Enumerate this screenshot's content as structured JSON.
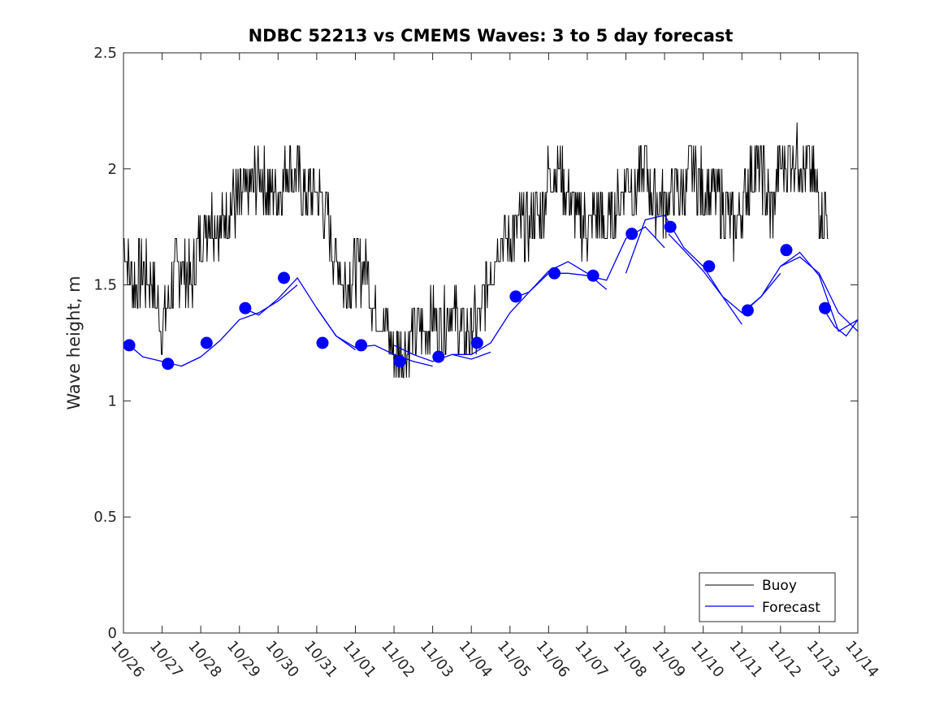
{
  "chart_data": {
    "type": "line",
    "title": "NDBC 52213 vs CMEMS Waves: 3 to 5 day forecast",
    "xlabel": "",
    "ylabel": "Wave height, m",
    "xlim": [
      0,
      19
    ],
    "ylim": [
      0,
      2.5
    ],
    "x_tick_labels": [
      "10/26",
      "10/27",
      "10/28",
      "10/29",
      "10/30",
      "10/31",
      "11/01",
      "11/02",
      "11/03",
      "11/04",
      "11/05",
      "11/06",
      "11/07",
      "11/08",
      "11/09",
      "11/10",
      "11/11",
      "11/12",
      "11/13",
      "11/14"
    ],
    "y_ticks": [
      0,
      0.5,
      1,
      1.5,
      2,
      2.5
    ],
    "y_tick_labels": [
      "0",
      "0.5",
      "1",
      "1.5",
      "2",
      "2.5"
    ],
    "legend": {
      "placement": "bottom-right",
      "entries": [
        "Buoy",
        "Forecast"
      ]
    },
    "colors": {
      "buoy": "#000000",
      "forecast": "#0000ff"
    },
    "series": [
      {
        "name": "Buoy",
        "x": [
          0.0,
          0.25,
          0.5,
          0.75,
          1.0,
          1.25,
          1.5,
          1.75,
          2.0,
          2.25,
          2.5,
          2.75,
          3.0,
          3.25,
          3.5,
          3.75,
          4.0,
          4.25,
          4.5,
          4.75,
          5.0,
          5.25,
          5.5,
          5.75,
          6.0,
          6.25,
          6.5,
          6.75,
          7.0,
          7.25,
          7.5,
          7.75,
          8.0,
          8.25,
          8.5,
          8.75,
          9.0,
          9.25,
          9.5,
          9.75,
          10.0,
          10.25,
          10.5,
          10.75,
          11.0,
          11.25,
          11.5,
          11.75,
          12.0,
          12.25,
          12.5,
          12.75,
          13.0,
          13.25,
          13.5,
          13.75,
          14.0,
          14.25,
          14.5,
          14.75,
          15.0,
          15.25,
          15.5,
          15.75,
          16.0,
          16.25,
          16.5,
          16.75,
          17.0,
          17.25,
          17.5,
          17.75,
          18.0,
          18.25
        ],
        "values": [
          1.7,
          1.5,
          1.55,
          1.5,
          1.3,
          1.5,
          1.6,
          1.5,
          1.7,
          1.8,
          1.75,
          1.85,
          1.85,
          1.9,
          2.0,
          1.9,
          1.9,
          2.0,
          1.95,
          1.9,
          1.9,
          1.8,
          1.6,
          1.5,
          1.55,
          1.6,
          1.4,
          1.35,
          1.2,
          1.2,
          1.3,
          1.3,
          1.35,
          1.3,
          1.4,
          1.3,
          1.3,
          1.35,
          1.6,
          1.7,
          1.7,
          1.75,
          1.75,
          1.8,
          1.95,
          2.0,
          1.9,
          1.8,
          1.75,
          1.8,
          1.75,
          1.85,
          1.95,
          1.9,
          2.0,
          1.85,
          1.85,
          1.9,
          1.9,
          2.0,
          1.9,
          1.9,
          1.85,
          1.75,
          1.8,
          2.0,
          2.0,
          1.8,
          2.0,
          2.05,
          2.05,
          2.0,
          1.85,
          1.8
        ]
      },
      {
        "name": "Forecast",
        "segments": [
          {
            "x": [
              0.15,
              0.5,
              1.0,
              1.5,
              2.0
            ],
            "values": [
              1.24,
              1.19,
              1.17,
              1.15,
              1.19
            ]
          },
          {
            "x": [
              1.5,
              2.0,
              2.5,
              3.0,
              3.5,
              4.0,
              4.5
            ],
            "values": [
              1.15,
              1.19,
              1.26,
              1.35,
              1.38,
              1.43,
              1.5
            ]
          },
          {
            "x": [
              3.1,
              3.5,
              4.0,
              4.5,
              5.0,
              5.5,
              6.0
            ],
            "values": [
              1.4,
              1.37,
              1.44,
              1.53,
              1.4,
              1.28,
              1.22
            ]
          },
          {
            "x": [
              5.0,
              5.5,
              6.0,
              6.5,
              7.0,
              7.5,
              8.0
            ],
            "values": [
              1.4,
              1.28,
              1.23,
              1.24,
              1.2,
              1.17,
              1.15
            ]
          },
          {
            "x": [
              7.0,
              7.5,
              8.0,
              8.5,
              9.0,
              9.5
            ],
            "values": [
              1.24,
              1.2,
              1.17,
              1.2,
              1.18,
              1.21
            ]
          },
          {
            "x": [
              8.5,
              9.0,
              9.5,
              10.0,
              10.5,
              11.0,
              11.5
            ],
            "values": [
              1.2,
              1.2,
              1.25,
              1.38,
              1.47,
              1.55,
              1.55
            ]
          },
          {
            "x": [
              10.2,
              10.5,
              11.0,
              11.5,
              12.0,
              12.5
            ],
            "values": [
              1.45,
              1.47,
              1.56,
              1.6,
              1.55,
              1.48
            ]
          },
          {
            "x": [
              11.5,
              12.0,
              12.5,
              13.0,
              13.5,
              14.0
            ],
            "values": [
              1.55,
              1.54,
              1.52,
              1.7,
              1.75,
              1.66
            ]
          },
          {
            "x": [
              13.0,
              13.5,
              14.0,
              14.5,
              15.0,
              15.5,
              16.0
            ],
            "values": [
              1.55,
              1.78,
              1.8,
              1.66,
              1.58,
              1.45,
              1.33
            ]
          },
          {
            "x": [
              14.1,
              14.5,
              15.0,
              15.5,
              16.0,
              16.5,
              17.0
            ],
            "values": [
              1.72,
              1.65,
              1.56,
              1.45,
              1.38,
              1.45,
              1.55
            ]
          },
          {
            "x": [
              16.1,
              16.5,
              17.0,
              17.5,
              18.0,
              18.5,
              19.0
            ],
            "values": [
              1.39,
              1.45,
              1.58,
              1.62,
              1.55,
              1.38,
              1.3
            ]
          },
          {
            "x": [
              17.0,
              17.5,
              18.0,
              18.5,
              19.0
            ],
            "values": [
              1.58,
              1.64,
              1.54,
              1.3,
              1.35
            ]
          },
          {
            "x": [
              18.1,
              18.4,
              18.7,
              19.0
            ],
            "values": [
              1.4,
              1.32,
              1.28,
              1.35
            ]
          }
        ],
        "markers": {
          "x": [
            0.15,
            1.15,
            2.15,
            3.15,
            4.15,
            5.15,
            6.15,
            7.15,
            8.15,
            9.15,
            10.15,
            11.15,
            12.15,
            13.15,
            14.15,
            15.15,
            16.15,
            17.15,
            18.15
          ],
          "values": [
            1.24,
            1.16,
            1.25,
            1.4,
            1.53,
            1.25,
            1.24,
            1.17,
            1.19,
            1.25,
            1.45,
            1.55,
            1.54,
            1.72,
            1.75,
            1.58,
            1.39,
            1.65,
            1.4
          ]
        }
      }
    ]
  }
}
